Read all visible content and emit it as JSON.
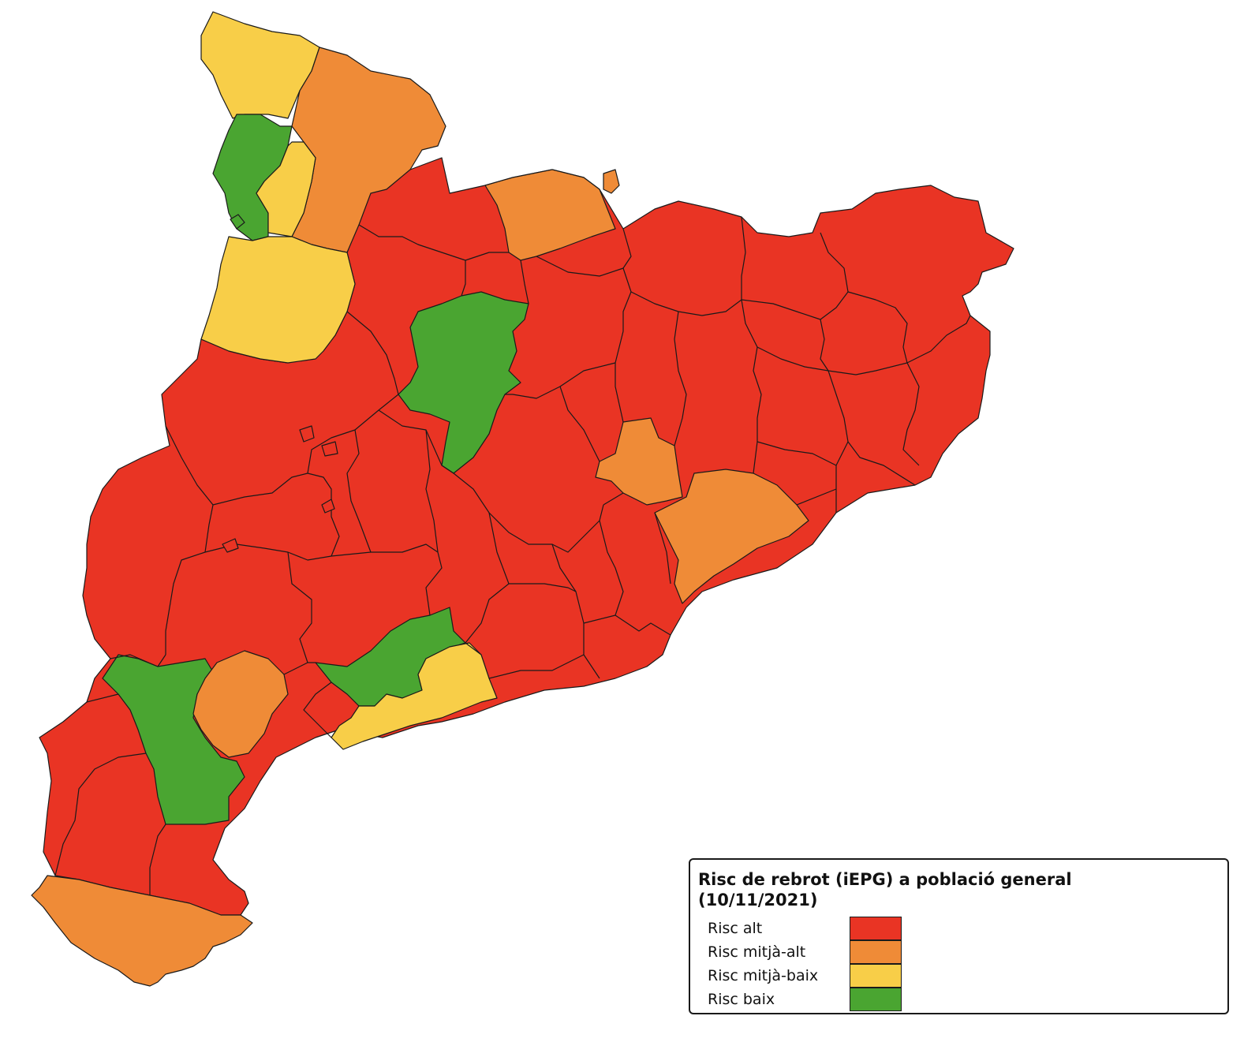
{
  "colors": {
    "alt": "#e93424",
    "mitja_alt": "#ef8b37",
    "mitja_baix": "#f8ce48",
    "baix": "#4aa531",
    "border": "#1a1a1a"
  },
  "legend": {
    "title_line1": "Risc de rebrot (iEPG) a població general",
    "title_line2": "(10/11/2021)",
    "items": [
      {
        "label": "Risc alt",
        "level": "alt"
      },
      {
        "label": "Risc mitjà-alt",
        "level": "mitja_alt"
      },
      {
        "label": "Risc mitjà-baix",
        "level": "mitja_baix"
      },
      {
        "label": "Risc baix",
        "level": "baix"
      }
    ]
  }
}
